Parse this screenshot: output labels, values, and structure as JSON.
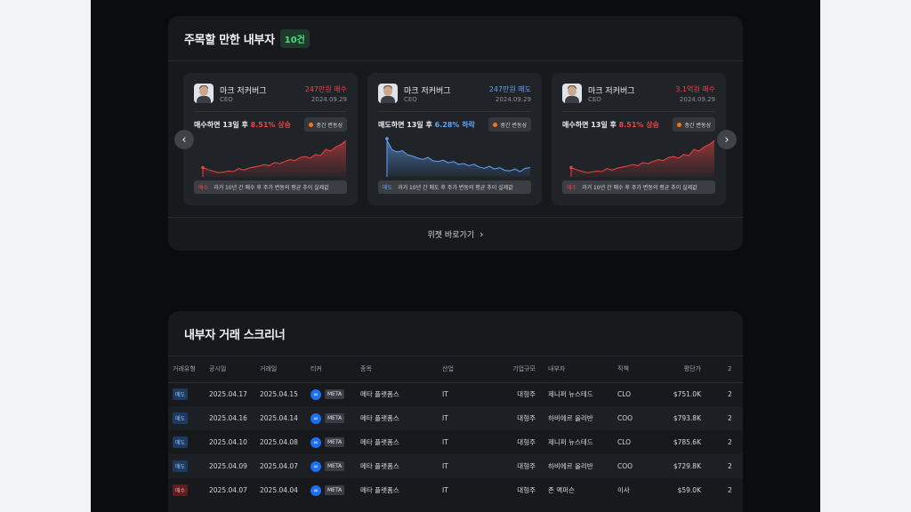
{
  "notable": {
    "title": "주목할 만한 내부자",
    "count_badge": "10건",
    "cards": [
      {
        "name": "마크 저커버그",
        "role": "CEO",
        "amount": "247만원 매수",
        "side": "buy",
        "date": "2024.09.29",
        "perf_prefix": "매수하면 13일 후 ",
        "perf_pct": "8.51% 상승",
        "volatility": "중간 변동성",
        "note_tag": "매수",
        "note": "과거 10년 간 매수 후 주가 변동의 평균 추이 실제값",
        "series": [
          1.0,
          0.6,
          0.3,
          0.0,
          0.1,
          0.3,
          0.2,
          0.8,
          0.5,
          0.9,
          1.1,
          1.3,
          1.6,
          1.4,
          2.0,
          1.8,
          2.2,
          2.6,
          2.4,
          3.0,
          3.2,
          2.9,
          3.6,
          3.4,
          4.6,
          4.3,
          5.1,
          5.6,
          6.4
        ]
      },
      {
        "name": "마크 저커버그",
        "role": "CEO",
        "amount": "247만원 매도",
        "side": "sell",
        "date": "2024.09.29",
        "perf_prefix": "매도하면 13일 후 ",
        "perf_pct": "6.28% 하락",
        "volatility": "중간 변동성",
        "note_tag": "매도",
        "note": "과거 10년 간 매도 후 주가 변동의 평균 추이 실제값",
        "series": [
          6.0,
          4.6,
          4.3,
          4.5,
          3.9,
          3.7,
          3.4,
          3.2,
          3.5,
          3.0,
          2.9,
          3.1,
          2.7,
          2.9,
          2.5,
          2.6,
          2.3,
          2.5,
          2.1,
          1.9,
          2.2,
          1.8,
          2.0,
          1.6,
          1.5,
          1.8,
          1.4,
          1.9,
          2.0
        ]
      },
      {
        "name": "마크 저커버그",
        "role": "CEO",
        "amount": "3.1억원 매수",
        "side": "buy",
        "date": "2024.09.29",
        "perf_prefix": "매수하면 13일 후 ",
        "perf_pct": "8.51% 상승",
        "volatility": "중간 변동성",
        "note_tag": "매수",
        "note": "과거 10년 간 매수 후 주가 변동의 평균 추이 실제값",
        "series": [
          1.0,
          0.6,
          0.3,
          0.0,
          0.1,
          0.3,
          0.2,
          0.8,
          0.5,
          0.9,
          1.1,
          1.3,
          1.6,
          1.4,
          2.0,
          1.8,
          2.2,
          2.6,
          2.4,
          3.0,
          3.2,
          2.9,
          3.6,
          3.4,
          4.6,
          4.3,
          5.1,
          5.6,
          6.4
        ]
      }
    ],
    "widget_link": "위젯 바로가기"
  },
  "screener": {
    "title": "내부자 거래 스크리너",
    "headers": [
      "거래유형",
      "공시일",
      "거래일",
      "티커",
      "종목",
      "산업",
      "기업규모",
      "내부자",
      "직책",
      "평단가",
      "2"
    ],
    "rows": [
      {
        "type": "매도",
        "side": "sell",
        "filed": "2025.04.17",
        "traded": "2025.04.15",
        "ticker": "META",
        "company": "메타 플랫폼스",
        "industry": "IT",
        "size": "대형주",
        "insider": "제니퍼 뉴스테드",
        "title": "CLO",
        "price": "$751.0K",
        "more": "2"
      },
      {
        "type": "매도",
        "side": "sell",
        "filed": "2025.04.16",
        "traded": "2025.04.14",
        "ticker": "META",
        "company": "메타 플랫폼스",
        "industry": "IT",
        "size": "대형주",
        "insider": "하비에르 올리반",
        "title": "COO",
        "price": "$793.8K",
        "more": "2"
      },
      {
        "type": "매도",
        "side": "sell",
        "filed": "2025.04.10",
        "traded": "2025.04.08",
        "ticker": "META",
        "company": "메타 플랫폼스",
        "industry": "IT",
        "size": "대형주",
        "insider": "제니퍼 뉴스테드",
        "title": "CLO",
        "price": "$785.6K",
        "more": "2"
      },
      {
        "type": "매도",
        "side": "sell",
        "filed": "2025.04.09",
        "traded": "2025.04.07",
        "ticker": "META",
        "company": "메타 플랫폼스",
        "industry": "IT",
        "size": "대형주",
        "insider": "하비에르 올리반",
        "title": "COO",
        "price": "$729.8K",
        "more": "2"
      },
      {
        "type": "매수",
        "side": "buy",
        "filed": "2025.04.07",
        "traded": "2025.04.04",
        "ticker": "META",
        "company": "메타 플랫폼스",
        "industry": "IT",
        "size": "대형주",
        "insider": "존 맥퍼슨",
        "title": "이사",
        "price": "$59.0K",
        "more": "2"
      }
    ]
  },
  "colors": {
    "buy": "#ef4444",
    "sell": "#60a5fa"
  }
}
